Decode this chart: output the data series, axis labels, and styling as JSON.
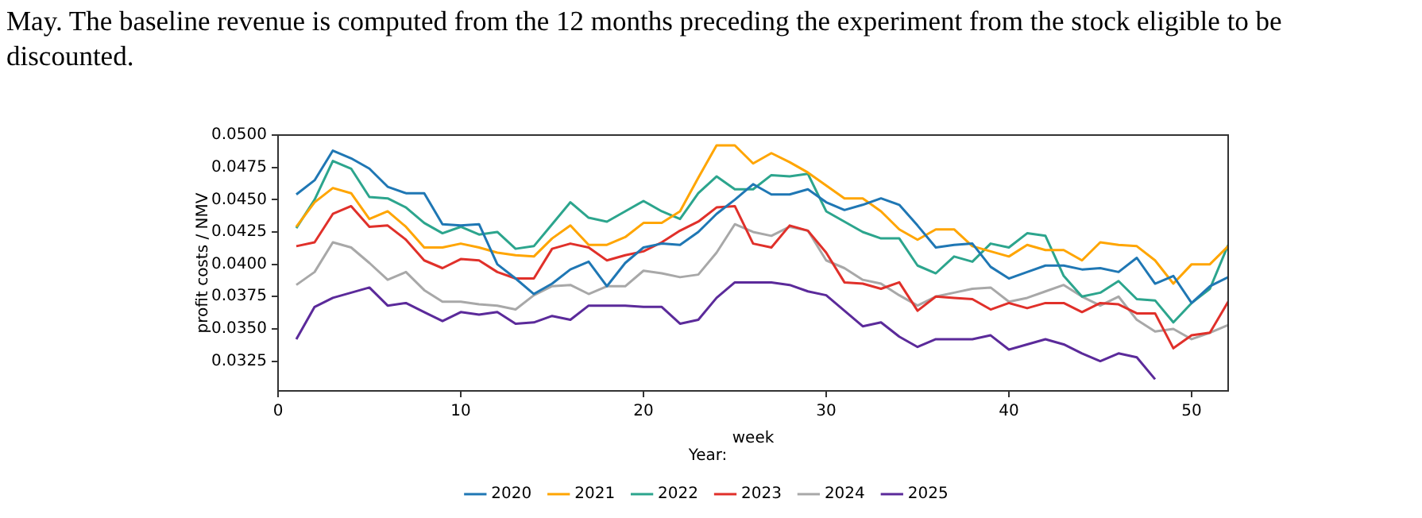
{
  "chart_data": {
    "type": "line",
    "annotations": [
      "May. The baseline revenue is computed from the 12 months preceding the experiment from the stock eligible to be discounted."
    ],
    "xlabel": "week",
    "ylabel": "profit costs / NMV",
    "legend_title": "Year:",
    "legend": "bottom",
    "grid": false,
    "marker": "none",
    "line_style": "solid",
    "x": [
      1,
      2,
      3,
      4,
      5,
      6,
      7,
      8,
      9,
      10,
      11,
      12,
      13,
      14,
      15,
      16,
      17,
      18,
      19,
      20,
      21,
      22,
      23,
      24,
      25,
      26,
      27,
      28,
      29,
      30,
      31,
      32,
      33,
      34,
      35,
      36,
      37,
      38,
      39,
      40,
      41,
      42,
      43,
      44,
      45,
      46,
      47,
      48,
      49,
      50,
      51,
      52
    ],
    "xlim": [
      0,
      52
    ],
    "xticks": [
      0,
      10,
      20,
      30,
      40,
      50
    ],
    "ylim": [
      0.0302,
      0.05
    ],
    "yticks": [
      {
        "value": 0.0325,
        "label": "0.0325"
      },
      {
        "value": 0.035,
        "label": "0.0350"
      },
      {
        "value": 0.0375,
        "label": "0.0375"
      },
      {
        "value": 0.04,
        "label": "0.0400"
      },
      {
        "value": 0.0425,
        "label": "0.0425"
      },
      {
        "value": 0.045,
        "label": "0.0450"
      },
      {
        "value": 0.0475,
        "label": "0.0475"
      },
      {
        "value": 0.05,
        "label": "0.0500"
      }
    ],
    "series": [
      {
        "name": "2020",
        "color": "#1f77b4",
        "values": [
          0.0454,
          0.0465,
          0.0488,
          0.0482,
          0.0474,
          0.046,
          0.0455,
          0.0455,
          0.0431,
          0.043,
          0.0431,
          0.04,
          0.0389,
          0.0377,
          0.0385,
          0.0396,
          0.0402,
          0.0383,
          0.0401,
          0.0413,
          0.0416,
          0.0415,
          0.0425,
          0.0439,
          0.045,
          0.0462,
          0.0454,
          0.0454,
          0.0458,
          0.0448,
          0.0442,
          0.0446,
          0.0451,
          0.0446,
          0.043,
          0.0413,
          0.0415,
          0.0416,
          0.0398,
          0.0389,
          0.0394,
          0.0399,
          0.0399,
          0.0396,
          0.0397,
          0.0394,
          0.0405,
          0.0385,
          0.0391,
          0.037,
          0.0383,
          0.039
        ]
      },
      {
        "name": "2021",
        "color": "#ffa500",
        "values": [
          0.0429,
          0.0448,
          0.0459,
          0.0455,
          0.0435,
          0.0441,
          0.0429,
          0.0413,
          0.0413,
          0.0416,
          0.0413,
          0.0409,
          0.0407,
          0.0406,
          0.042,
          0.043,
          0.0415,
          0.0415,
          0.0421,
          0.0432,
          0.0432,
          0.0441,
          0.0467,
          0.0492,
          0.0492,
          0.0478,
          0.0486,
          0.0479,
          0.0471,
          0.0461,
          0.0451,
          0.0451,
          0.0441,
          0.0427,
          0.0419,
          0.0427,
          0.0427,
          0.0414,
          0.041,
          0.0406,
          0.0415,
          0.0411,
          0.0411,
          0.0403,
          0.0417,
          0.0415,
          0.0414,
          0.0403,
          0.0385,
          0.04,
          0.04,
          0.0414
        ]
      },
      {
        "name": "2022",
        "color": "#2ca58d",
        "values": [
          0.0428,
          0.045,
          0.048,
          0.0474,
          0.0452,
          0.0451,
          0.0444,
          0.0432,
          0.0424,
          0.0429,
          0.0423,
          0.0425,
          0.0412,
          0.0414,
          0.0431,
          0.0448,
          0.0436,
          0.0433,
          0.0441,
          0.0449,
          0.0441,
          0.0435,
          0.0455,
          0.0468,
          0.0458,
          0.0458,
          0.0469,
          0.0468,
          0.047,
          0.0441,
          0.0433,
          0.0425,
          0.042,
          0.042,
          0.0399,
          0.0393,
          0.0406,
          0.0402,
          0.0416,
          0.0413,
          0.0424,
          0.0422,
          0.0391,
          0.0375,
          0.0378,
          0.0387,
          0.0373,
          0.0372,
          0.0355,
          0.037,
          0.0381,
          0.0415
        ]
      },
      {
        "name": "2023",
        "color": "#e0302a",
        "values": [
          0.0414,
          0.0417,
          0.0439,
          0.0445,
          0.0429,
          0.043,
          0.0419,
          0.0403,
          0.0397,
          0.0404,
          0.0403,
          0.0394,
          0.0389,
          0.0389,
          0.0412,
          0.0416,
          0.0413,
          0.0403,
          0.0407,
          0.041,
          0.0417,
          0.0426,
          0.0433,
          0.0444,
          0.0445,
          0.0416,
          0.0413,
          0.043,
          0.0426,
          0.0409,
          0.0386,
          0.0385,
          0.0381,
          0.0386,
          0.0364,
          0.0375,
          0.0374,
          0.0373,
          0.0365,
          0.037,
          0.0366,
          0.037,
          0.037,
          0.0363,
          0.037,
          0.0369,
          0.0362,
          0.0362,
          0.0335,
          0.0345,
          0.0347,
          0.0371
        ]
      },
      {
        "name": "2024",
        "color": "#a8a8a8",
        "values": [
          0.0384,
          0.0394,
          0.0417,
          0.0413,
          0.0401,
          0.0388,
          0.0394,
          0.038,
          0.0371,
          0.0371,
          0.0369,
          0.0368,
          0.0365,
          0.0376,
          0.0383,
          0.0384,
          0.0377,
          0.0383,
          0.0383,
          0.0395,
          0.0393,
          0.039,
          0.0392,
          0.0409,
          0.0431,
          0.0425,
          0.0422,
          0.0429,
          0.0426,
          0.0403,
          0.0397,
          0.0388,
          0.0385,
          0.0376,
          0.0368,
          0.0375,
          0.0378,
          0.0381,
          0.0382,
          0.0371,
          0.0374,
          0.0379,
          0.0384,
          0.0375,
          0.0368,
          0.0375,
          0.0357,
          0.0348,
          0.035,
          0.0342,
          0.0347,
          0.0353
        ]
      },
      {
        "name": "2025",
        "color": "#5b2a9a",
        "values": [
          0.0342,
          0.0367,
          0.0374,
          0.0378,
          0.0382,
          0.0368,
          0.037,
          0.0363,
          0.0356,
          0.0363,
          0.0361,
          0.0363,
          0.0354,
          0.0355,
          0.036,
          0.0357,
          0.0368,
          0.0368,
          0.0368,
          0.0367,
          0.0367,
          0.0354,
          0.0357,
          0.0374,
          0.0386,
          0.0386,
          0.0386,
          0.0384,
          0.0379,
          0.0376,
          0.0364,
          0.0352,
          0.0355,
          0.0344,
          0.0336,
          0.0342,
          0.0342,
          0.0342,
          0.0345,
          0.0334,
          0.0338,
          0.0342,
          0.0338,
          0.0331,
          0.0325,
          0.0331,
          0.0328,
          0.0311,
          null,
          null,
          null,
          null
        ]
      }
    ]
  }
}
